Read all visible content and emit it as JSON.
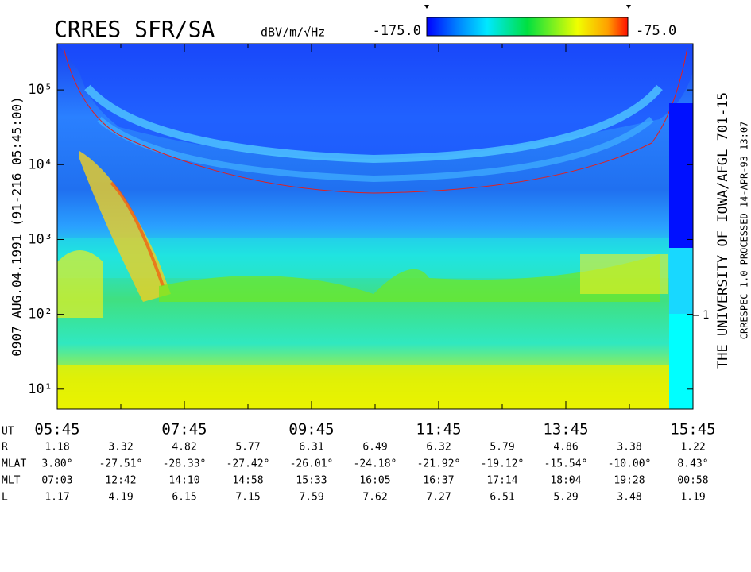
{
  "chart_data": {
    "type": "spectrogram",
    "title": "CRRES SFR/SA",
    "colorbar_label": "dBV/m/√Hz",
    "colorbar_range": [
      {
        "value": -175,
        "label": "-175.0"
      },
      {
        "value": -75,
        "label": "-75.0"
      }
    ],
    "left_caption": "0907   AUG.04.1991   (91-216 05:45:00)",
    "right_caption": "THE UNIVERSITY OF IOWA/AFGL 701-15",
    "right_subcaption": "CRRESPEC 1.0   PROCESSED 14-APR-93  13:07",
    "log_y": true,
    "ylim": [
      5.4,
      414000
    ],
    "yticks": [
      {
        "value": 10,
        "label": "10¹"
      },
      {
        "value": 100,
        "label": "10²"
      },
      {
        "value": 1000,
        "label": "10³"
      },
      {
        "value": 10000,
        "label": "10⁴"
      },
      {
        "value": 100000,
        "label": "10⁵"
      }
    ],
    "y2lim": [
      0.054,
      4750
    ],
    "y2ticks": [
      1
    ],
    "xlim": [
      5.75,
      15.75
    ],
    "xticks": [
      {
        "value": 5.75,
        "label": "05:45"
      },
      {
        "value": 7.75,
        "label": "07:45"
      },
      {
        "value": 9.75,
        "label": "09:45"
      },
      {
        "value": 11.75,
        "label": "11:45"
      },
      {
        "value": 13.75,
        "label": "13:45"
      },
      {
        "value": 15.75,
        "label": "15:45"
      }
    ],
    "x_label": "UT",
    "ephemeris": [
      {
        "name": "R",
        "values": [
          "1.18",
          "3.32",
          "4.82",
          "5.77",
          "6.31",
          "6.49",
          "6.32",
          "5.79",
          "4.86",
          "3.38",
          "1.22"
        ]
      },
      {
        "name": "MLAT",
        "values": [
          "3.80°",
          "-27.51°",
          "-28.33°",
          "-27.42°",
          "-26.01°",
          "-24.18°",
          "-21.92°",
          "-19.12°",
          "-15.54°",
          "-10.00°",
          "8.43°"
        ]
      },
      {
        "name": "MLT",
        "values": [
          "07:03",
          "12:42",
          "14:10",
          "14:58",
          "15:33",
          "16:05",
          "16:37",
          "17:14",
          "18:04",
          "19:28",
          "00:58"
        ]
      },
      {
        "name": "L",
        "values": [
          "1.17",
          "4.19",
          "6.15",
          "7.15",
          "7.59",
          "7.62",
          "7.27",
          "6.51",
          "5.29",
          "3.48",
          "1.19"
        ]
      }
    ]
  }
}
